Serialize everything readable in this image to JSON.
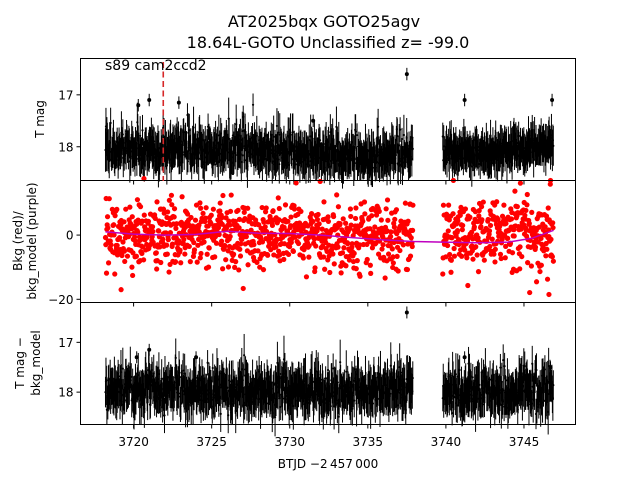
{
  "chart_data": {
    "type": "scatter",
    "title_line1": "AT2025bqx  GOTO25agv",
    "title_line2": "18.64L-GOTO Unclassified z= -99.0",
    "xlabel": "BTJD −2 457 000",
    "xlim": [
      3716.6,
      3748.3
    ],
    "xticks": [
      3720,
      3725,
      3730,
      3735,
      3740,
      3745
    ],
    "xtick_labels": [
      "3720",
      "3725",
      "3730",
      "3735",
      "3740",
      "3745"
    ],
    "marker_line": {
      "x": 3721.9,
      "color": "#d62728",
      "style": "dashed"
    },
    "annotation": "s89 cam2ccd2",
    "segments": [
      {
        "start": 3718.2,
        "end": 3737.9
      },
      {
        "start": 3739.8,
        "end": 3746.9
      }
    ],
    "panels": [
      {
        "name": "T-mag",
        "ylabel": "T mag",
        "ylim": [
          16.3,
          18.65
        ],
        "inverted": true,
        "yticks": [
          17,
          18
        ],
        "ytick_labels": [
          "17",
          "18"
        ],
        "baseline": 18.1,
        "scatter": 0.12,
        "errbar": 0.35,
        "color": "#000000",
        "outliers": [
          {
            "x": 3737.5,
            "y": 16.6
          },
          {
            "x": 3720.3,
            "y": 17.2
          },
          {
            "x": 3721.0,
            "y": 17.1
          },
          {
            "x": 3722.9,
            "y": 17.15
          },
          {
            "x": 3741.2,
            "y": 17.1
          },
          {
            "x": 3746.8,
            "y": 17.1
          },
          {
            "x": 3731.5,
            "y": 17.5
          }
        ]
      },
      {
        "name": "Bkg",
        "ylabel_line1": "Bkg (red)/",
        "ylabel_line2": "bkg_model (purple)",
        "ylim": [
          -21,
          17
        ],
        "inverted": false,
        "yticks": [
          0,
          -20
        ],
        "ytick_labels": [
          "0",
          "−20"
        ],
        "baseline": 0,
        "scatter": 5,
        "color": "#ff0000",
        "model_color": "#bf00bf",
        "model_points": [
          {
            "x": 3718.2,
            "y": 1.0
          },
          {
            "x": 3720.0,
            "y": 0.3
          },
          {
            "x": 3722.0,
            "y": 0.0
          },
          {
            "x": 3724.0,
            "y": 0.2
          },
          {
            "x": 3726.0,
            "y": 1.2
          },
          {
            "x": 3728.0,
            "y": 0.6
          },
          {
            "x": 3730.0,
            "y": 0.5
          },
          {
            "x": 3732.0,
            "y": 0.0
          },
          {
            "x": 3734.0,
            "y": -0.8
          },
          {
            "x": 3736.0,
            "y": -1.5
          },
          {
            "x": 3737.9,
            "y": -2.0
          },
          {
            "x": 3739.8,
            "y": -2.2
          },
          {
            "x": 3742.0,
            "y": -2.4
          },
          {
            "x": 3744.0,
            "y": -2.2
          },
          {
            "x": 3745.5,
            "y": -1.0
          },
          {
            "x": 3746.9,
            "y": 1.5
          }
        ],
        "outliers": [
          {
            "x": 3746.7,
            "y": 17.0
          },
          {
            "x": 3746.6,
            "y": -18.5
          },
          {
            "x": 3719.2,
            "y": -17.0
          }
        ]
      },
      {
        "name": "T-mag-minus-model",
        "ylabel_line1": "T mag −",
        "ylabel_line2": "bkg_model",
        "ylim": [
          16.2,
          18.65
        ],
        "inverted": true,
        "yticks": [
          17,
          18
        ],
        "ytick_labels": [
          "17",
          "18"
        ],
        "baseline": 18.0,
        "scatter": 0.17,
        "errbar": 0.4,
        "color": "#000000",
        "outliers": [
          {
            "x": 3737.5,
            "y": 16.4
          },
          {
            "x": 3721.0,
            "y": 17.15
          },
          {
            "x": 3720.2,
            "y": 17.3
          },
          {
            "x": 3724.0,
            "y": 17.3
          },
          {
            "x": 3741.2,
            "y": 17.3
          },
          {
            "x": 3746.7,
            "y": 17.5
          }
        ]
      }
    ]
  }
}
